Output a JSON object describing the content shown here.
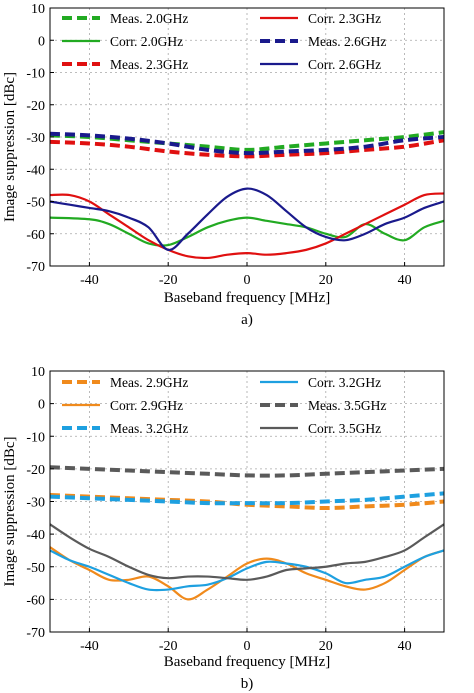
{
  "chart_data": [
    {
      "type": "line",
      "caption": "a)",
      "xlabel": "Baseband frequency [MHz]",
      "ylabel": "Image suppression [dBc]",
      "xlim": [
        -50,
        50
      ],
      "ylim": [
        -70,
        10
      ],
      "xticks": [
        -40,
        -20,
        0,
        20,
        40
      ],
      "yticks": [
        10,
        0,
        -10,
        -20,
        -30,
        -40,
        -50,
        -60,
        -70
      ],
      "grid": true,
      "legend_position": "top",
      "series": [
        {
          "name": "Meas. 2.0GHz",
          "color": "#22aa22",
          "dashed": true,
          "x": [
            -50,
            -40,
            -30,
            -20,
            -10,
            0,
            10,
            20,
            30,
            40,
            50
          ],
          "y": [
            -29.5,
            -30,
            -31,
            -32,
            -33,
            -34,
            -33,
            -32,
            -31,
            -30,
            -28.5
          ]
        },
        {
          "name": "Corr. 2.0GHz",
          "color": "#22aa22",
          "dashed": false,
          "x": [
            -50,
            -40,
            -35,
            -30,
            -25,
            -20,
            -15,
            -10,
            -5,
            0,
            5,
            10,
            15,
            20,
            25,
            30,
            35,
            40,
            45,
            50
          ],
          "y": [
            -55,
            -55.5,
            -57,
            -60,
            -63,
            -63.5,
            -61,
            -58,
            -56,
            -55,
            -56,
            -57,
            -58,
            -60,
            -61,
            -57,
            -60,
            -62,
            -58,
            -56
          ]
        },
        {
          "name": "Meas. 2.3GHz",
          "color": "#e01010",
          "dashed": true,
          "x": [
            -50,
            -40,
            -30,
            -20,
            -10,
            0,
            10,
            20,
            30,
            40,
            50
          ],
          "y": [
            -31.5,
            -32,
            -33,
            -34.5,
            -35.5,
            -36,
            -35.5,
            -35,
            -34,
            -33,
            -31
          ]
        },
        {
          "name": "Corr. 2.3GHz",
          "color": "#e01010",
          "dashed": false,
          "x": [
            -50,
            -45,
            -40,
            -35,
            -30,
            -25,
            -20,
            -15,
            -10,
            -5,
            0,
            5,
            10,
            15,
            20,
            25,
            30,
            35,
            40,
            45,
            50
          ],
          "y": [
            -48,
            -48,
            -50,
            -54,
            -58,
            -62,
            -65,
            -67,
            -67.5,
            -66.5,
            -66,
            -66.5,
            -66,
            -65,
            -63,
            -60,
            -57,
            -54,
            -51,
            -48,
            -47.5
          ]
        },
        {
          "name": "Meas. 2.6GHz",
          "color": "#1a1a8c",
          "dashed": true,
          "x": [
            -50,
            -40,
            -30,
            -20,
            -10,
            0,
            10,
            20,
            30,
            40,
            50
          ],
          "y": [
            -29,
            -29.5,
            -30.5,
            -32,
            -34,
            -35,
            -34.5,
            -34,
            -33,
            -31,
            -30
          ]
        },
        {
          "name": "Corr. 2.6GHz",
          "color": "#1a1a8c",
          "dashed": false,
          "x": [
            -50,
            -45,
            -40,
            -35,
            -30,
            -25,
            -20,
            -15,
            -10,
            -5,
            0,
            5,
            10,
            15,
            20,
            25,
            30,
            35,
            40,
            45,
            50
          ],
          "y": [
            -50,
            -51,
            -52,
            -53,
            -55,
            -58,
            -65,
            -60,
            -54,
            -48.5,
            -46,
            -48,
            -53,
            -58,
            -61,
            -62,
            -60,
            -57,
            -55,
            -52,
            -50
          ]
        }
      ]
    },
    {
      "type": "line",
      "caption": "b)",
      "xlabel": "Baseband frequency [MHz]",
      "ylabel": "Image suppression [dBc]",
      "xlim": [
        -50,
        50
      ],
      "ylim": [
        -70,
        10
      ],
      "xticks": [
        -40,
        -20,
        0,
        20,
        40
      ],
      "yticks": [
        10,
        0,
        -10,
        -20,
        -30,
        -40,
        -50,
        -60,
        -70
      ],
      "grid": true,
      "legend_position": "top",
      "series": [
        {
          "name": "Meas. 2.9GHz",
          "color": "#f08a1c",
          "dashed": true,
          "x": [
            -50,
            -40,
            -30,
            -20,
            -10,
            0,
            10,
            20,
            30,
            40,
            50
          ],
          "y": [
            -28,
            -28.5,
            -29,
            -29.5,
            -30,
            -31,
            -31.5,
            -32,
            -31.5,
            -31,
            -30
          ]
        },
        {
          "name": "Corr. 2.9GHz",
          "color": "#f08a1c",
          "dashed": false,
          "x": [
            -50,
            -45,
            -40,
            -35,
            -30,
            -25,
            -20,
            -15,
            -10,
            -5,
            0,
            5,
            10,
            15,
            20,
            25,
            30,
            35,
            40,
            45,
            50
          ],
          "y": [
            -44,
            -48,
            -51,
            -54,
            -54,
            -53,
            -56,
            -60,
            -57,
            -53,
            -49,
            -47.5,
            -49,
            -52,
            -54,
            -56,
            -57,
            -55,
            -51,
            -47,
            -45
          ]
        },
        {
          "name": "Meas. 3.2GHz",
          "color": "#1ea0e0",
          "dashed": true,
          "x": [
            -50,
            -40,
            -30,
            -20,
            -10,
            0,
            10,
            20,
            30,
            40,
            50
          ],
          "y": [
            -28.5,
            -29,
            -29.5,
            -30,
            -30.5,
            -30.5,
            -30.5,
            -30,
            -29.5,
            -28.5,
            -27.5
          ]
        },
        {
          "name": "Corr. 3.2GHz",
          "color": "#1ea0e0",
          "dashed": false,
          "x": [
            -50,
            -45,
            -40,
            -35,
            -30,
            -25,
            -20,
            -15,
            -10,
            -5,
            0,
            5,
            10,
            15,
            20,
            25,
            30,
            35,
            40,
            45,
            50
          ],
          "y": [
            -45,
            -48,
            -50,
            -52.5,
            -55,
            -57,
            -57,
            -56,
            -55.5,
            -53.5,
            -50.5,
            -48.5,
            -49,
            -50,
            -52,
            -55,
            -54,
            -53,
            -50,
            -47,
            -45
          ]
        },
        {
          "name": "Meas. 3.5GHz",
          "color": "#5a5a5a",
          "dashed": true,
          "x": [
            -50,
            -40,
            -30,
            -20,
            -10,
            0,
            10,
            20,
            30,
            40,
            50
          ],
          "y": [
            -19.5,
            -20,
            -20.5,
            -21,
            -21.5,
            -22,
            -22,
            -21.5,
            -21,
            -20.5,
            -20
          ]
        },
        {
          "name": "Corr. 3.5GHz",
          "color": "#5a5a5a",
          "dashed": false,
          "x": [
            -50,
            -45,
            -40,
            -35,
            -30,
            -25,
            -20,
            -15,
            -10,
            -5,
            0,
            5,
            10,
            15,
            20,
            25,
            30,
            35,
            40,
            45,
            50
          ],
          "y": [
            -37,
            -41,
            -44.5,
            -47,
            -50,
            -52.5,
            -53.5,
            -53,
            -53,
            -53.5,
            -54,
            -53,
            -51,
            -50.5,
            -50,
            -49,
            -48.5,
            -47,
            -45,
            -41,
            -37
          ]
        }
      ]
    }
  ]
}
